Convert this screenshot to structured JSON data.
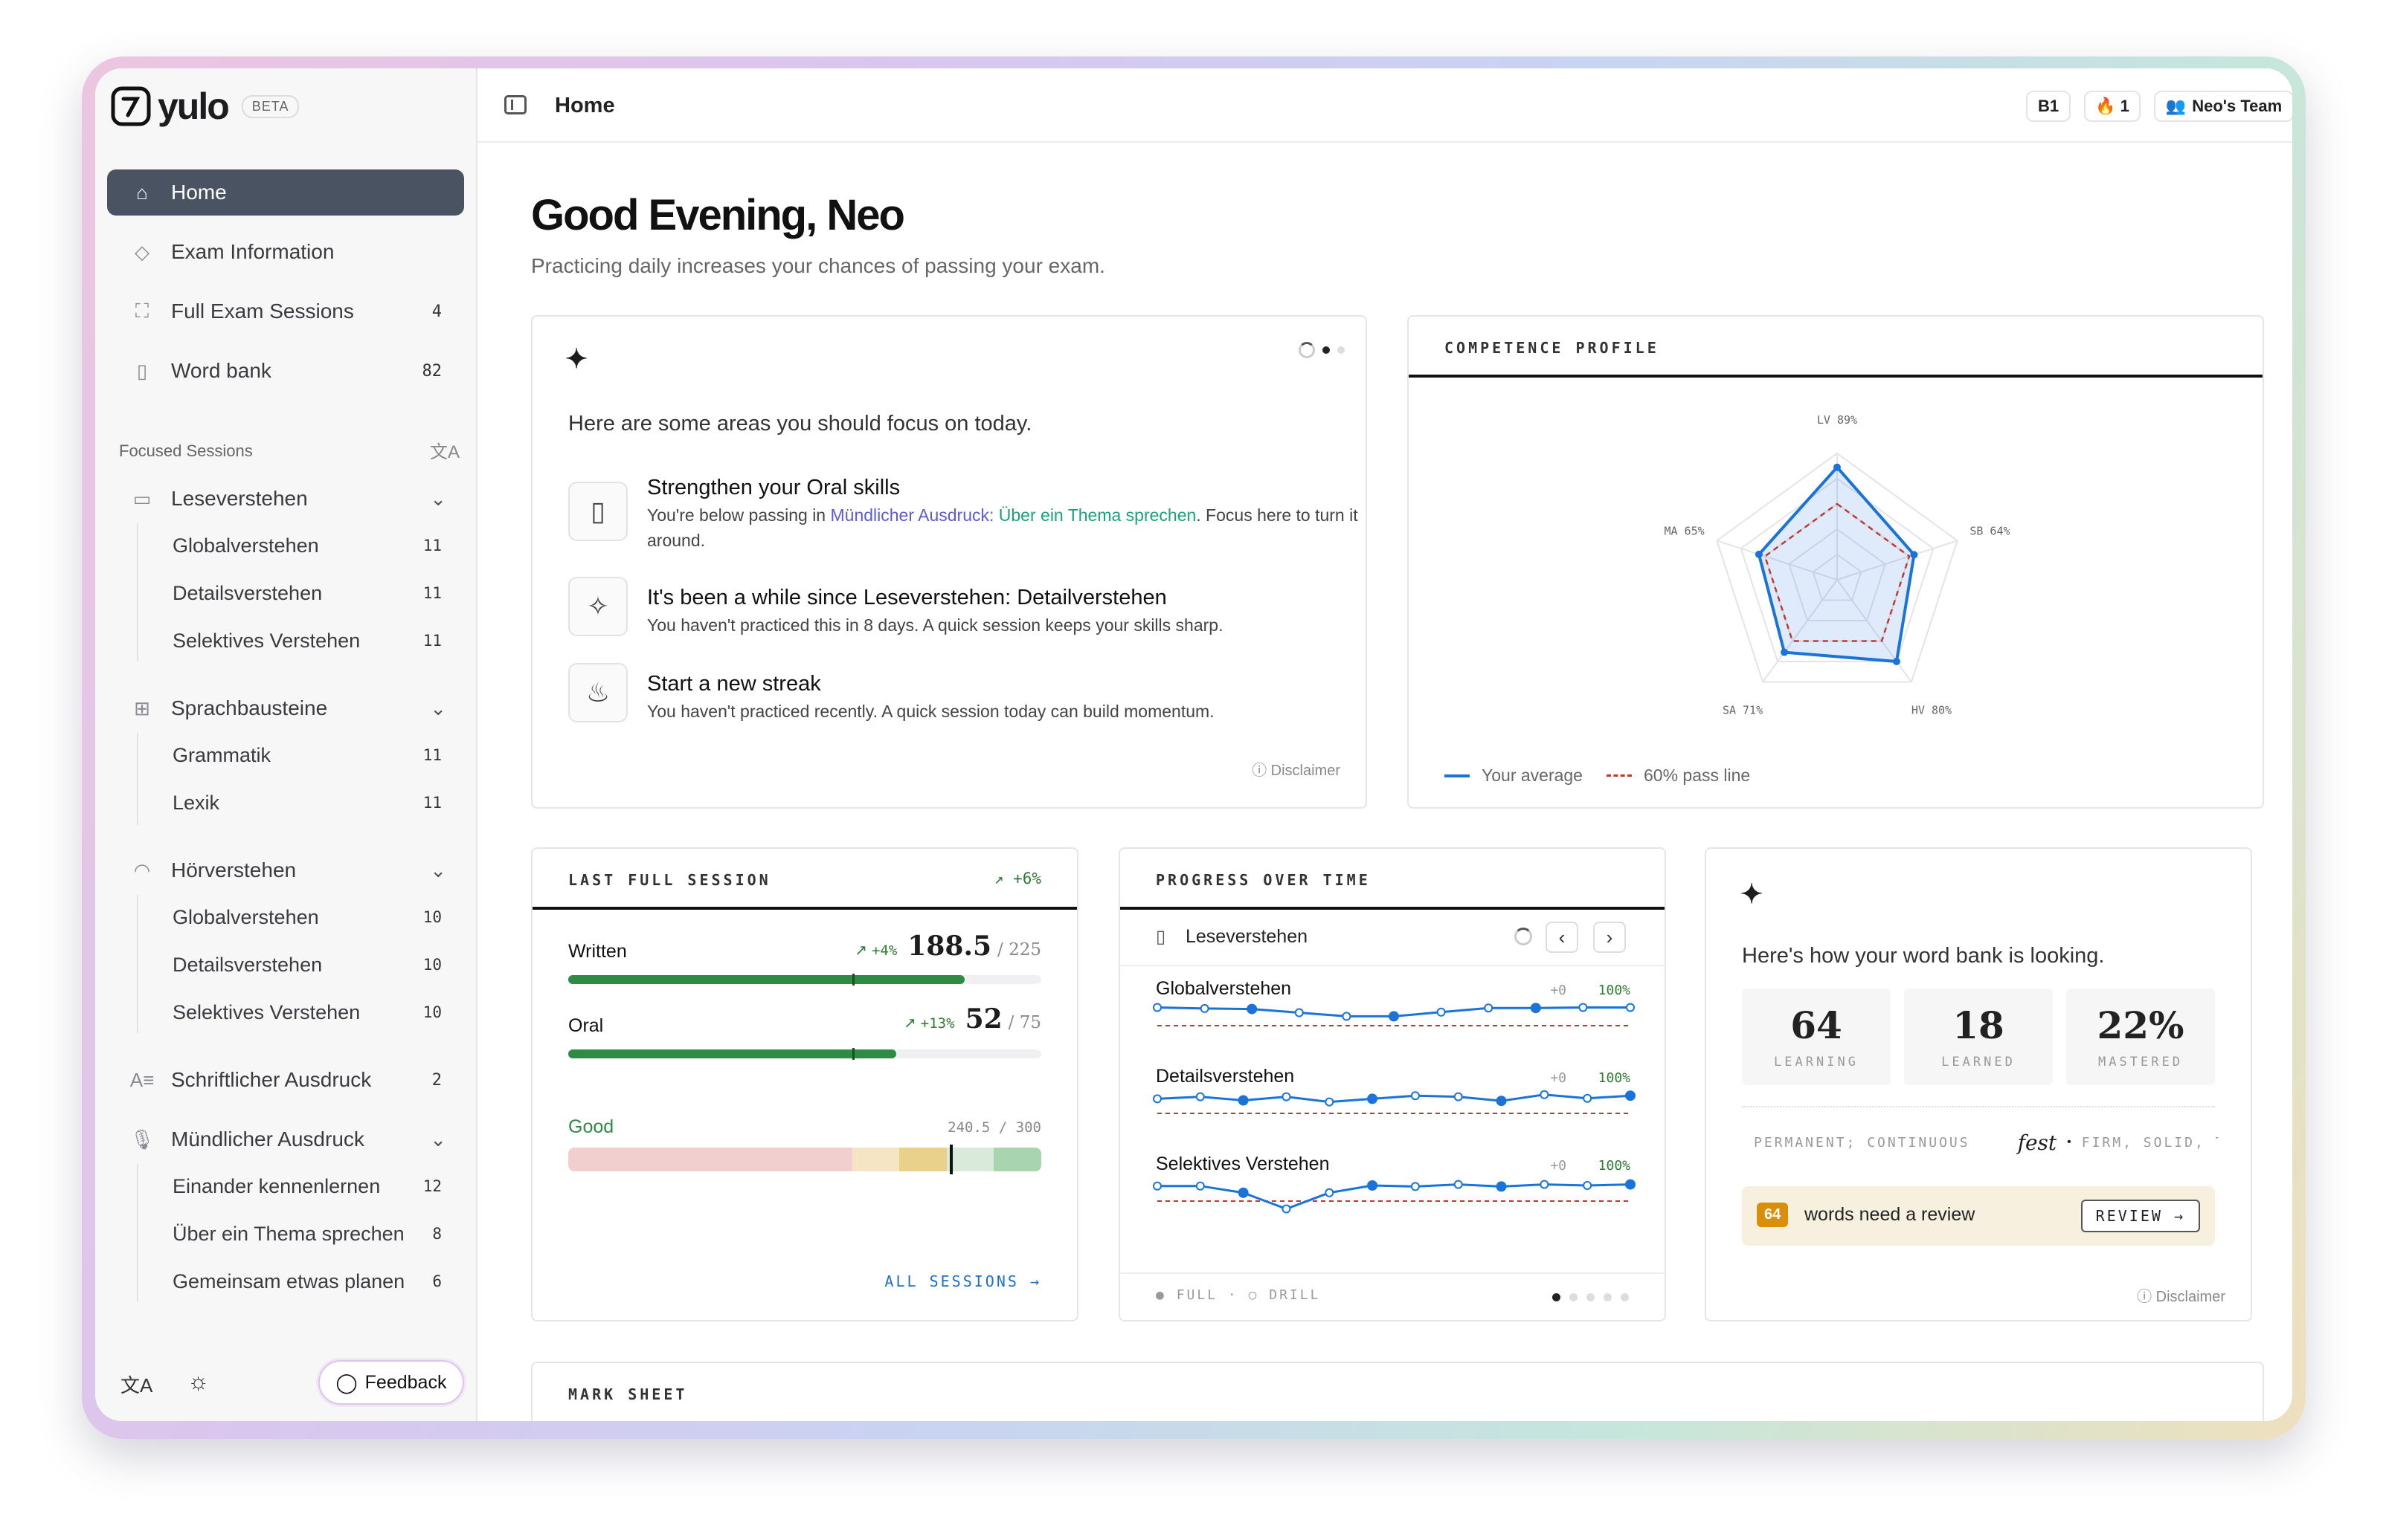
{
  "brand": {
    "name": "yulo",
    "badge": "BETA"
  },
  "sidebar": {
    "items": [
      {
        "label": "Home",
        "icon": "home-icon"
      },
      {
        "label": "Exam Information",
        "icon": "graduation-cap-icon"
      },
      {
        "label": "Full Exam Sessions",
        "icon": "scan-icon",
        "count": "4"
      },
      {
        "label": "Word bank",
        "icon": "bookmark-icon",
        "count": "82"
      }
    ],
    "focused_title": "Focused Sessions",
    "groups": [
      {
        "label": "Leseverstehen",
        "icon": "book-icon",
        "subs": [
          {
            "label": "Globalverstehen",
            "count": "11"
          },
          {
            "label": "Detailsverstehen",
            "count": "11"
          },
          {
            "label": "Selektives Verstehen",
            "count": "11"
          }
        ]
      },
      {
        "label": "Sprachbausteine",
        "icon": "blocks-icon",
        "subs": [
          {
            "label": "Grammatik",
            "count": "11"
          },
          {
            "label": "Lexik",
            "count": "11"
          }
        ]
      },
      {
        "label": "Hörverstehen",
        "icon": "headphones-icon",
        "subs": [
          {
            "label": "Globalverstehen",
            "count": "10"
          },
          {
            "label": "Detailsverstehen",
            "count": "10"
          },
          {
            "label": "Selektives Verstehen",
            "count": "10"
          }
        ]
      },
      {
        "label": "Schriftlicher Ausdruck",
        "icon": "text-icon",
        "count": "2"
      },
      {
        "label": "Mündlicher Ausdruck",
        "icon": "microphone-icon",
        "subs": [
          {
            "label": "Einander kennenlernen",
            "count": "12"
          },
          {
            "label": "Über ein Thema sprechen",
            "count": "8"
          },
          {
            "label": "Gemeinsam etwas planen",
            "count": "6"
          }
        ]
      }
    ],
    "feedback_label": "Feedback"
  },
  "topbar": {
    "title": "Home",
    "level": "B1",
    "streak": "1",
    "team": "Neo's Team"
  },
  "greeting": {
    "title": "Good Evening, Neo",
    "subtitle": "Practicing daily increases your chances of passing your exam."
  },
  "focus": {
    "intro": "Here are some areas you should focus on today.",
    "items": [
      {
        "title": "Strengthen your Oral skills",
        "desc_a": "You're below passing in ",
        "link_a": "Mündlicher Ausdruck: ",
        "link_b": "Über ein Thema sprechen",
        "desc_b": ". Focus here to turn it around."
      },
      {
        "title": "It's been a while since Leseverstehen: Detailverstehen",
        "desc": "You haven't practiced this in 8 days. A quick session keeps your skills sharp."
      },
      {
        "title": "Start a new streak",
        "desc": "You haven't practiced recently. A quick session today can build momentum."
      }
    ],
    "disclaimer": "Disclaimer"
  },
  "competence": {
    "title": "COMPETENCE PROFILE",
    "axes": [
      {
        "label": "LV 89%",
        "value": 89
      },
      {
        "label": "SB 64%",
        "value": 64
      },
      {
        "label": "HV 80%",
        "value": 80
      },
      {
        "label": "SA 71%",
        "value": 71
      },
      {
        "label": "MA 65%",
        "value": 65
      }
    ],
    "pass_value": 60,
    "legend_avg": "Your average",
    "legend_pass": "60% pass line",
    "colors": {
      "avg": "#1a73d9",
      "pass": "#c0392b"
    }
  },
  "last_session": {
    "title": "LAST FULL SESSION",
    "delta": "+6%",
    "written": {
      "label": "Written",
      "delta": "+4%",
      "score": "188.5",
      "max": "/ 225",
      "fill": 0.838,
      "pass": 0.6
    },
    "oral": {
      "label": "Oral",
      "delta": "+13%",
      "score": "52",
      "max": "/ 75",
      "fill": 0.693,
      "pass": 0.6
    },
    "overall": {
      "label": "Good",
      "score": "240.5 / 300",
      "value": 0.802
    },
    "link": "ALL SESSIONS"
  },
  "progress": {
    "title": "PROGRESS OVER TIME",
    "section": "Leseverstehen",
    "rows": [
      {
        "label": "Globalverstehen",
        "delta": "+0",
        "pct": "100%",
        "values": [
          95,
          93,
          92,
          85,
          78,
          78,
          86,
          94,
          94,
          95,
          95
        ]
      },
      {
        "label": "Detailsverstehen",
        "delta": "+0",
        "pct": "100%",
        "values": [
          88,
          92,
          85,
          92,
          82,
          88,
          94,
          92,
          84,
          96,
          89,
          94
        ]
      },
      {
        "label": "Selektives Verstehen",
        "delta": "+0",
        "pct": "100%",
        "values": [
          89,
          89,
          76,
          45,
          76,
          90,
          88,
          92,
          88,
          92,
          90,
          92
        ]
      }
    ],
    "pass_line": 60,
    "legend_full": "FULL",
    "legend_drill": "DRILL"
  },
  "wordbank": {
    "intro": "Here's how your word bank is looking.",
    "stats": [
      {
        "n": "64",
        "l": "LEARNING"
      },
      {
        "n": "18",
        "l": "LEARNED"
      },
      {
        "n": "22%",
        "l": "MASTERED"
      }
    ],
    "example_left": "PERMANENT; CONTINUOUS",
    "example_word": "fest",
    "example_right": "FIRM, SOLID, T",
    "review_count": "64",
    "review_text": "words need a review",
    "review_btn": "REVIEW",
    "disclaimer": "Disclaimer"
  },
  "mark_sheet": {
    "title": "MARK SHEET"
  }
}
